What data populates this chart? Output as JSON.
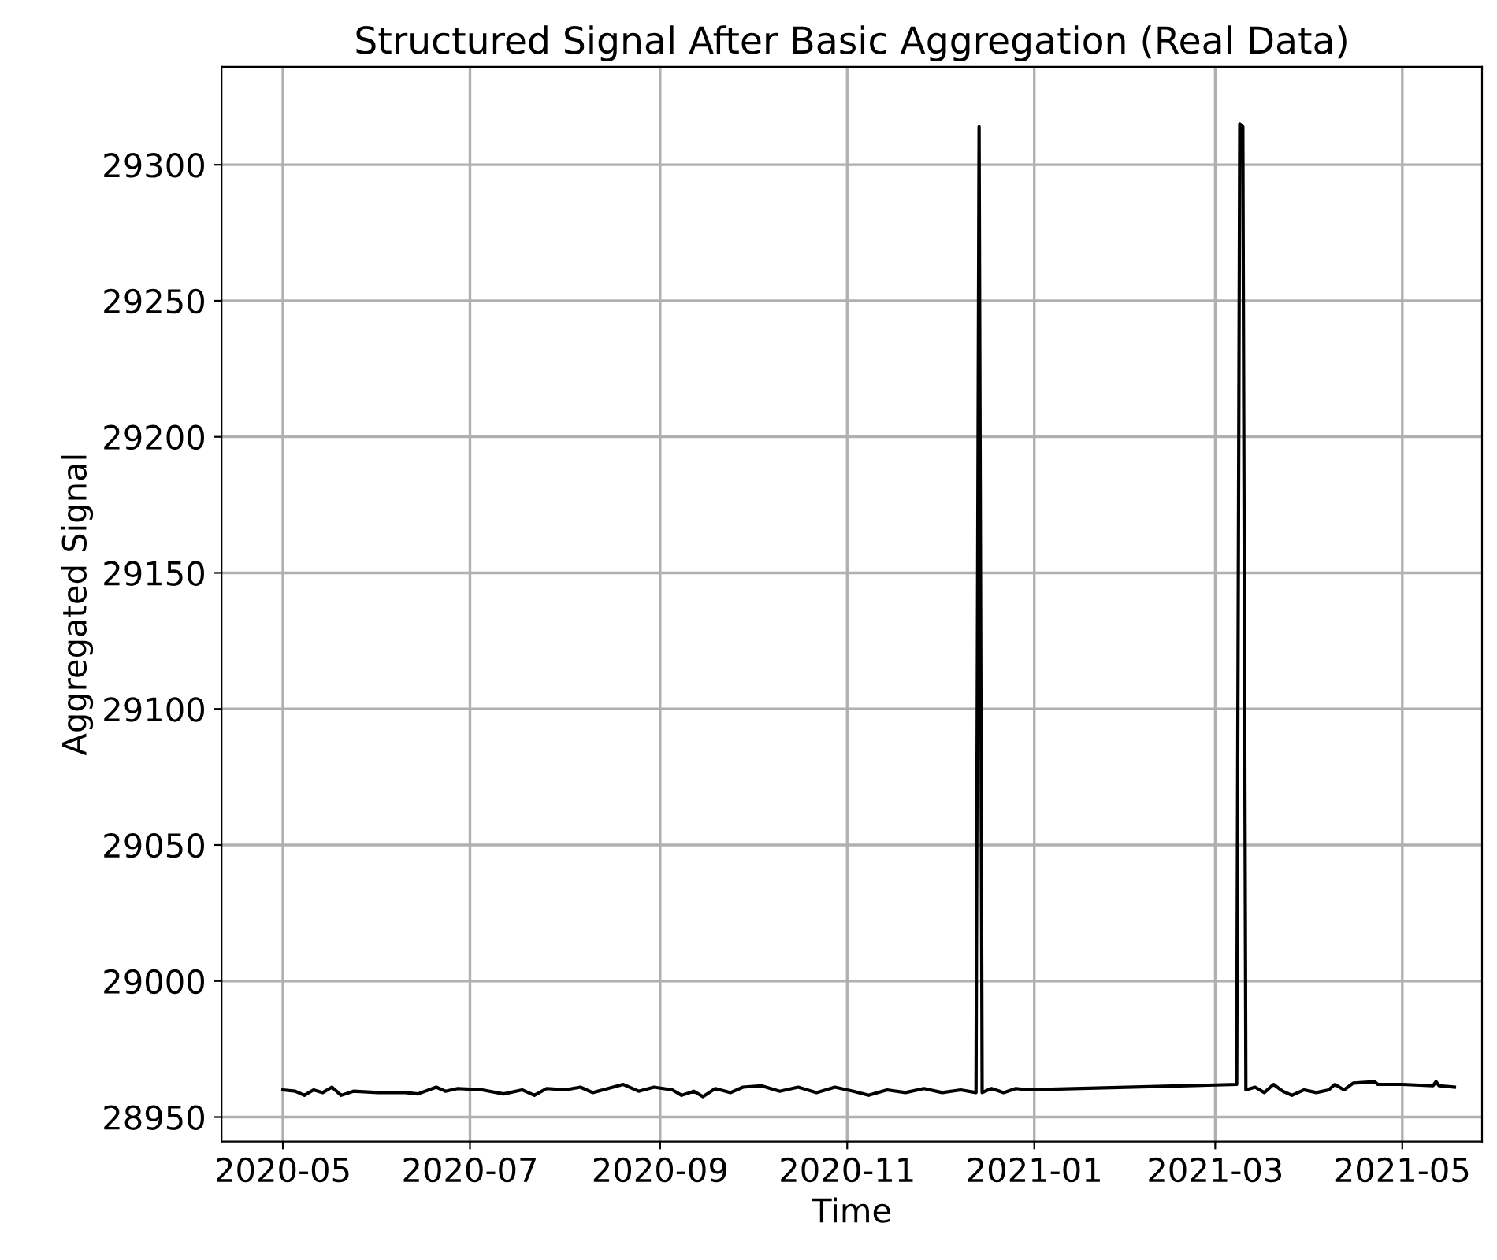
{
  "chart_data": {
    "type": "line",
    "title": "Structured Signal After Basic Aggregation (Real Data)",
    "xlabel": "Time",
    "ylabel": "Aggregated Signal",
    "xlim": [
      "2020-04-11",
      "2021-05-27"
    ],
    "xticks": [
      {
        "value": "2020-05-01",
        "label": "2020-05"
      },
      {
        "value": "2020-07-01",
        "label": "2020-07"
      },
      {
        "value": "2020-09-01",
        "label": "2020-09"
      },
      {
        "value": "2020-11-01",
        "label": "2020-11"
      },
      {
        "value": "2021-01-01",
        "label": "2021-01"
      },
      {
        "value": "2021-03-01",
        "label": "2021-03"
      },
      {
        "value": "2021-05-01",
        "label": "2021-05"
      }
    ],
    "ylim": [
      28941,
      29336
    ],
    "yticks": [
      28950,
      29000,
      29050,
      29100,
      29150,
      29200,
      29250,
      29300
    ],
    "grid": true,
    "legend": false,
    "marker": "none",
    "line_style": "solid",
    "x": [
      "2020-05-01",
      "2020-05-05",
      "2020-05-08",
      "2020-05-11",
      "2020-05-14",
      "2020-05-17",
      "2020-05-20",
      "2020-05-24",
      "2020-06-01",
      "2020-06-10",
      "2020-06-14",
      "2020-06-20",
      "2020-06-23",
      "2020-06-27",
      "2020-07-05",
      "2020-07-12",
      "2020-07-18",
      "2020-07-22",
      "2020-07-26",
      "2020-08-01",
      "2020-08-06",
      "2020-08-10",
      "2020-08-15",
      "2020-08-20",
      "2020-08-25",
      "2020-08-30",
      "2020-09-05",
      "2020-09-08",
      "2020-09-12",
      "2020-09-15",
      "2020-09-19",
      "2020-09-24",
      "2020-09-28",
      "2020-10-04",
      "2020-10-10",
      "2020-10-16",
      "2020-10-22",
      "2020-10-28",
      "2020-11-03",
      "2020-11-08",
      "2020-11-14",
      "2020-11-20",
      "2020-11-26",
      "2020-12-02",
      "2020-12-08",
      "2020-12-13",
      "2020-12-14",
      "2020-12-15",
      "2020-12-18",
      "2020-12-22",
      "2020-12-26",
      "2020-12-30",
      "2021-03-08",
      "2021-03-09",
      "2021-03-10",
      "2021-03-11",
      "2021-03-14",
      "2021-03-17",
      "2021-03-20",
      "2021-03-23",
      "2021-03-26",
      "2021-03-30",
      "2021-04-03",
      "2021-04-07",
      "2021-04-09",
      "2021-04-12",
      "2021-04-15",
      "2021-04-22",
      "2021-04-23",
      "2021-05-01",
      "2021-05-11",
      "2021-05-12",
      "2021-05-13",
      "2021-05-18"
    ],
    "series": [
      {
        "color": "#000000",
        "values": [
          28960,
          28959.5,
          28958,
          28960,
          28959,
          28961,
          28958,
          28959.5,
          28959,
          28959,
          28958.5,
          28961,
          28959.5,
          28960.5,
          28960,
          28958.5,
          28960,
          28958,
          28960.5,
          28960,
          28961,
          28959,
          28960.5,
          28962,
          28959.5,
          28961,
          28960,
          28958,
          28959.5,
          28957.5,
          28960.5,
          28959,
          28961,
          28961.5,
          28959.5,
          28961,
          28959,
          28961,
          28959.5,
          28958,
          28960,
          28959,
          28960.5,
          28959,
          28960,
          28959,
          29314,
          28959,
          28960.5,
          28959,
          28960.5,
          28960,
          28962,
          29315,
          29314,
          28960,
          28961,
          28959,
          28962,
          28959.5,
          28958,
          28960,
          28959,
          28960,
          28962,
          28960,
          28962.5,
          28963,
          28962,
          28962,
          28961.5,
          28963,
          28961.5,
          28961
        ]
      }
    ]
  }
}
